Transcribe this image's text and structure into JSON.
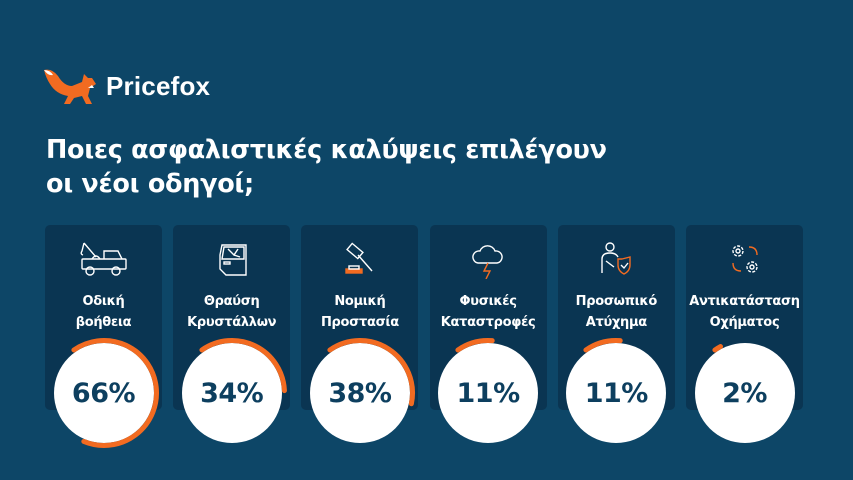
{
  "brand": {
    "name": "Pricefox",
    "logo_icon": "fox-icon",
    "accent": "#f26b21"
  },
  "title": {
    "line1": "Ποιες ασφαλιστικές καλύψεις επιλέγουν",
    "line2": "οι νέοι οδηγοί;"
  },
  "chart_data": {
    "type": "progress-ring",
    "categories": [
      "Οδική βοήθεια",
      "Θραύση Κρυστάλλων",
      "Νομική Προστασία",
      "Φυσικές Καταστροφές",
      "Προσωπικό Ατύχημα",
      "Αντικατάσταση Οχήματος"
    ],
    "values": [
      66,
      34,
      38,
      11,
      11,
      2
    ],
    "unit": "%",
    "ylim": [
      0,
      100
    ],
    "color": "#f26b21"
  },
  "cards": [
    {
      "line1": "Οδική",
      "line2": "βοήθεια",
      "value": "66%",
      "percent": 66,
      "icon": "tow-truck-icon"
    },
    {
      "line1": "Θραύση",
      "line2": "Κρυστάλλων",
      "value": "34%",
      "percent": 34,
      "icon": "broken-car-door-glass-icon"
    },
    {
      "line1": "Νομική",
      "line2": "Προστασία",
      "value": "38%",
      "percent": 38,
      "icon": "gavel-icon"
    },
    {
      "line1": "Φυσικές",
      "line2": "Καταστροφές",
      "value": "11%",
      "percent": 11,
      "icon": "storm-cloud-icon"
    },
    {
      "line1": "Προσωπικό",
      "line2": "Ατύχημα",
      "value": "11%",
      "percent": 11,
      "icon": "injured-person-shield-icon"
    },
    {
      "line1": "Αντικατάσταση",
      "line2": "Οχήματος",
      "value": "2%",
      "percent": 2,
      "icon": "gears-exchange-icon"
    }
  ]
}
